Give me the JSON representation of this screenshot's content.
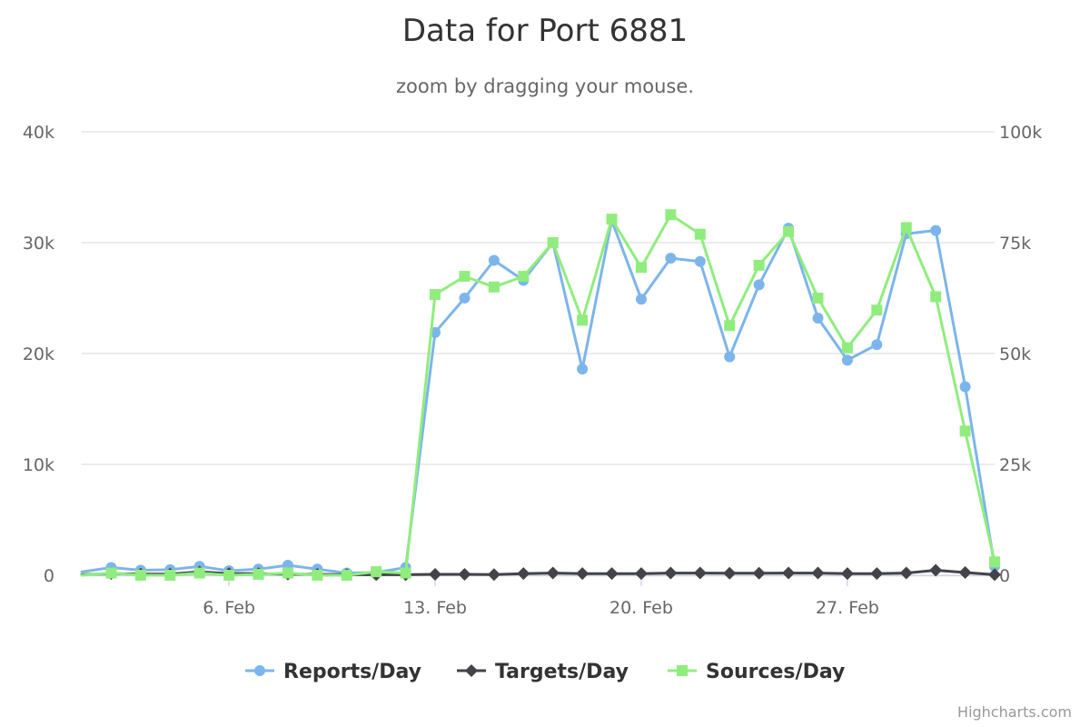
{
  "header": {
    "title": "Data for Port 6881",
    "subtitle": "zoom by dragging your mouse."
  },
  "credits": "Highcharts.com",
  "chart_data": {
    "type": "line",
    "title": "Data for Port 6881",
    "subtitle": "zoom by dragging your mouse.",
    "x": [
      "Feb 1",
      "Feb 2",
      "Feb 3",
      "Feb 4",
      "Feb 5",
      "Feb 6",
      "Feb 7",
      "Feb 8",
      "Feb 9",
      "Feb 10",
      "Feb 11",
      "Feb 12",
      "Feb 13",
      "Feb 14",
      "Feb 15",
      "Feb 16",
      "Feb 17",
      "Feb 18",
      "Feb 19",
      "Feb 20",
      "Feb 21",
      "Feb 22",
      "Feb 23",
      "Feb 24",
      "Feb 25",
      "Feb 26",
      "Feb 27",
      "Feb 28",
      "Mar 1",
      "Mar 2",
      "Mar 3",
      "Mar 4"
    ],
    "x_ticks": [
      "6. Feb",
      "13. Feb",
      "20. Feb",
      "27. Feb"
    ],
    "y_left": {
      "range": [
        0,
        40000
      ],
      "ticks": [
        "0",
        "10k",
        "20k",
        "30k",
        "40k"
      ]
    },
    "y_right": {
      "range": [
        0,
        100000
      ],
      "ticks": [
        "0",
        "25k",
        "50k",
        "75k",
        "100k"
      ]
    },
    "grid": true,
    "legend_position": "bottom-center",
    "series": [
      {
        "name": "Reports/Day",
        "axis": "left",
        "color": "#7cb5ec",
        "marker": "circle",
        "values": [
          300,
          700,
          450,
          500,
          800,
          400,
          550,
          900,
          550,
          200,
          250,
          700,
          21900,
          25000,
          28400,
          26600,
          30000,
          18600,
          32000,
          24900,
          28600,
          28300,
          19700,
          26200,
          31300,
          23200,
          19400,
          20800,
          30800,
          31100,
          17000,
          800
        ]
      },
      {
        "name": "Targets/Day",
        "axis": "left",
        "color": "#434348",
        "marker": "diamond",
        "values": [
          50,
          150,
          100,
          100,
          300,
          150,
          150,
          100,
          80,
          50,
          50,
          50,
          80,
          80,
          60,
          150,
          200,
          150,
          150,
          150,
          200,
          200,
          180,
          180,
          200,
          200,
          150,
          150,
          200,
          450,
          250,
          50
        ]
      },
      {
        "name": "Sources/Day",
        "axis": "right",
        "color": "#90ed7d",
        "marker": "square",
        "values": [
          0,
          500,
          0,
          0,
          500,
          0,
          200,
          500,
          0,
          0,
          800,
          500,
          63300,
          67400,
          65000,
          67400,
          75000,
          57500,
          80300,
          69400,
          81300,
          76900,
          56300,
          69900,
          77500,
          62500,
          51300,
          59800,
          78400,
          62800,
          32500,
          3000
        ]
      }
    ]
  }
}
